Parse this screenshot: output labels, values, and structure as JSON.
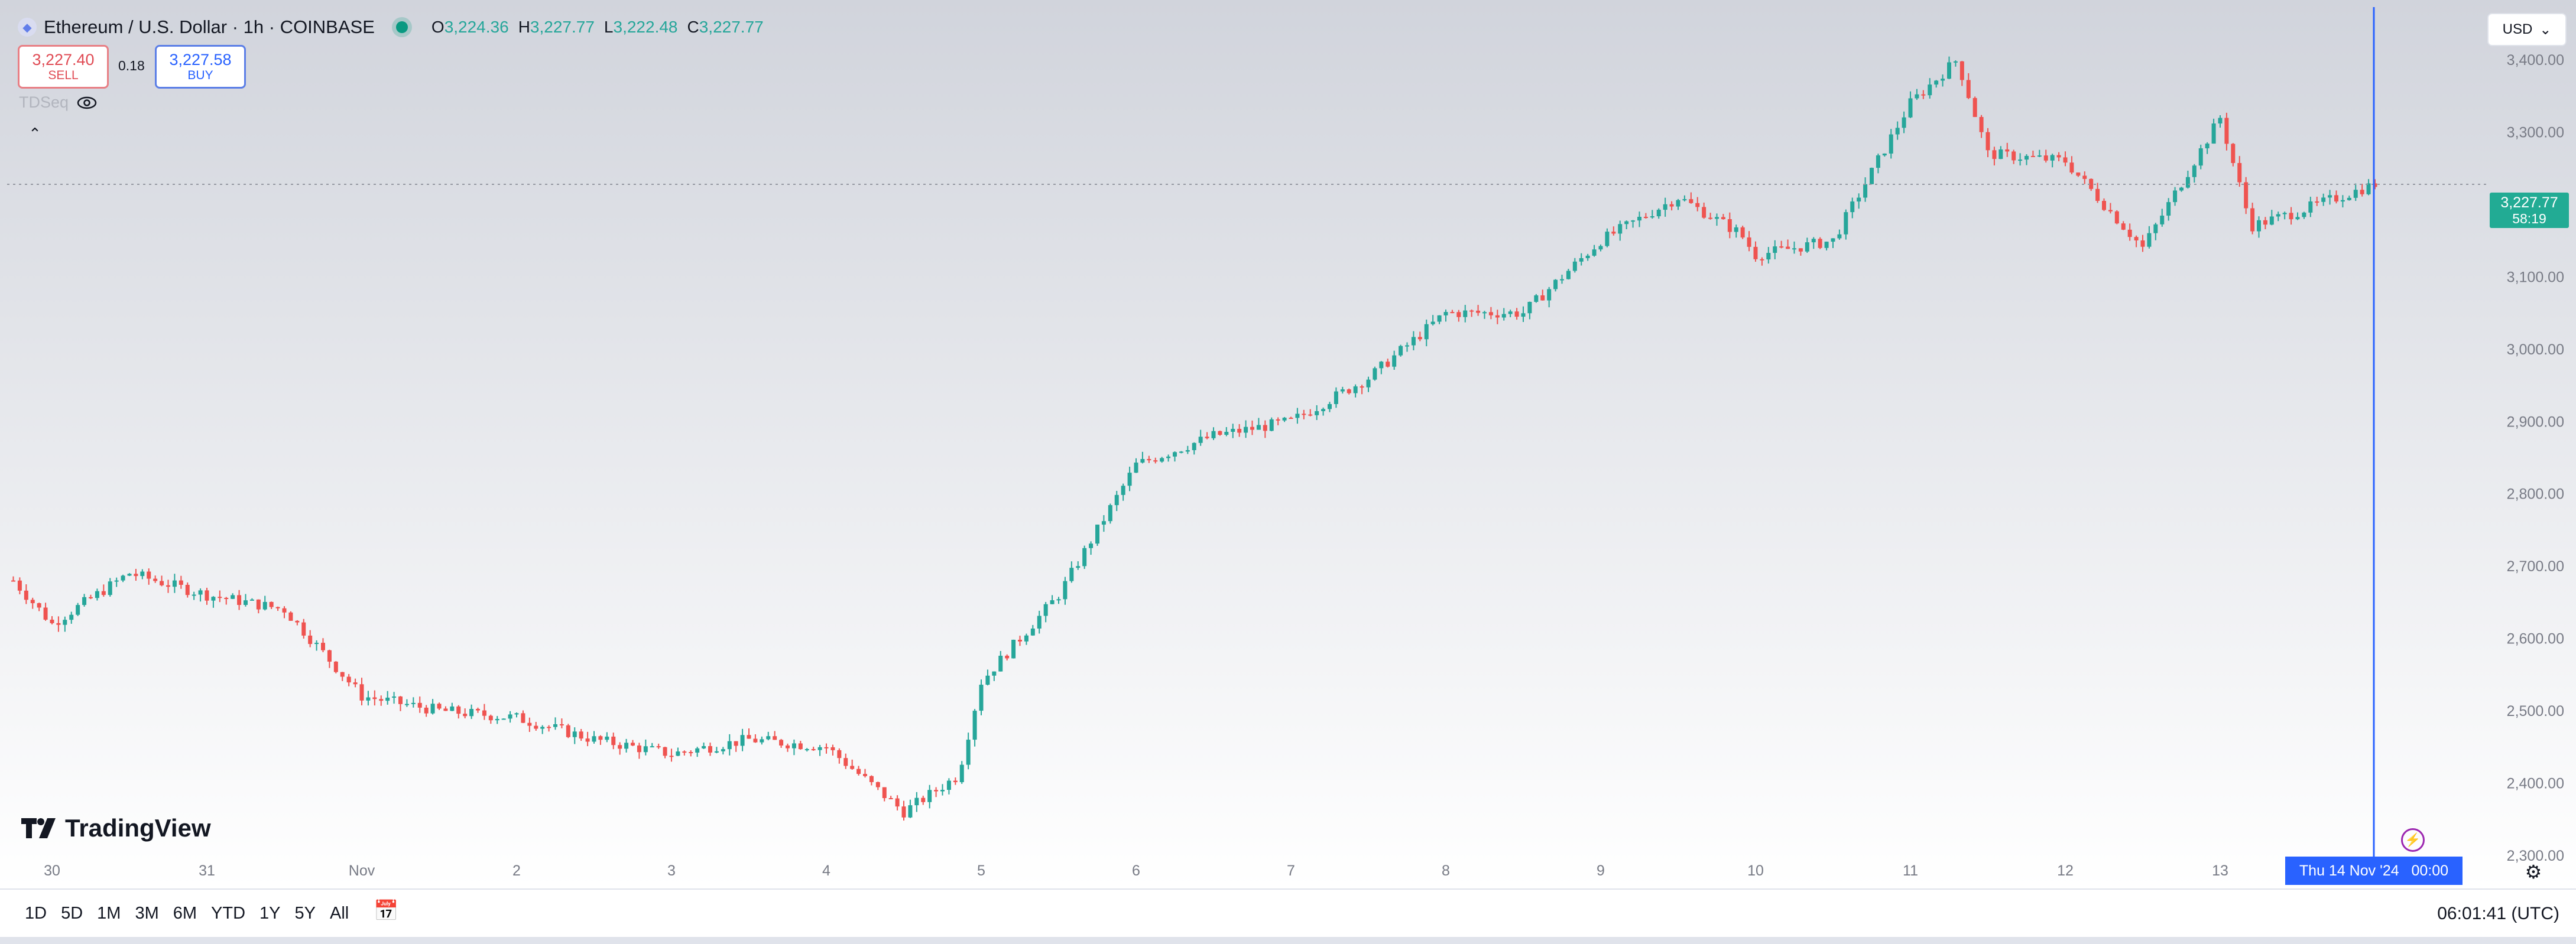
{
  "header": {
    "symbol_title": "Ethereum / U.S. Dollar · 1h · COINBASE",
    "symbol_icon": "ethereum-icon",
    "ohlc": [
      {
        "key": "O",
        "value": "3,224.36"
      },
      {
        "key": "H",
        "value": "3,227.77"
      },
      {
        "key": "L",
        "value": "3,222.48"
      },
      {
        "key": "C",
        "value": "3,227.77"
      }
    ],
    "status_color": "#089981"
  },
  "trade": {
    "sell_price": "3,227.40",
    "sell_label": "SELL",
    "spread": "0.18",
    "buy_price": "3,227.58",
    "buy_label": "BUY"
  },
  "indicator": {
    "name": "TDSeq",
    "icon": "eye-icon"
  },
  "currency_select": "USD",
  "brand": "TradingView",
  "crosshair": {
    "time_label": "Thu 14 Nov '24",
    "time_value": "00:00"
  },
  "last_price": {
    "price": "3,227.77",
    "countdown": "58:19"
  },
  "ranges": [
    "1D",
    "5D",
    "1M",
    "3M",
    "6M",
    "YTD",
    "1Y",
    "5Y",
    "All"
  ],
  "clock": "06:01:41 (UTC)",
  "colors": {
    "up": "#26a69a",
    "down": "#ef5350",
    "crosshair": "#2962ff",
    "axis_text": "#787b86"
  },
  "chart_data": {
    "type": "candlestick",
    "title": "Ethereum / U.S. Dollar · 1h · COINBASE",
    "x_tick_labels": [
      "30",
      "31",
      "Nov",
      "2",
      "3",
      "4",
      "5",
      "6",
      "7",
      "8",
      "9",
      "10",
      "11",
      "12",
      "13"
    ],
    "y_tick_labels": [
      "2,300.00",
      "2,400.00",
      "2,500.00",
      "2,600.00",
      "2,700.00",
      "2,800.00",
      "2,900.00",
      "3,000.00",
      "3,100.00",
      "3,200.00",
      "3,300.00",
      "3,400.00"
    ],
    "ylim": [
      2290,
      3450
    ],
    "y_ticks": [
      2300,
      2400,
      2500,
      2600,
      2700,
      2800,
      2900,
      3000,
      3100,
      3200,
      3300,
      3400
    ],
    "last_price": 3227.77,
    "x_days": [
      29.75,
      30,
      30.5,
      31,
      31.5,
      32,
      32.5,
      33,
      33.5,
      34,
      34.5,
      35,
      35.5,
      35.85,
      36,
      36.5,
      37,
      37.5,
      38,
      38.5,
      39,
      39.5,
      40,
      40.5,
      40.9,
      41,
      41.5,
      42,
      42.3,
      42.5,
      43,
      43.5,
      44,
      44.2,
      44.5,
      45.0
    ],
    "close_path": [
      2680,
      2620,
      2690,
      2660,
      2640,
      2520,
      2500,
      2490,
      2460,
      2440,
      2460,
      2450,
      2360,
      2410,
      2540,
      2660,
      2840,
      2880,
      2900,
      2960,
      3050,
      3050,
      3150,
      3210,
      3160,
      3130,
      3150,
      3340,
      3400,
      3270,
      3260,
      3140,
      3320,
      3170,
      3190,
      3228
    ]
  }
}
